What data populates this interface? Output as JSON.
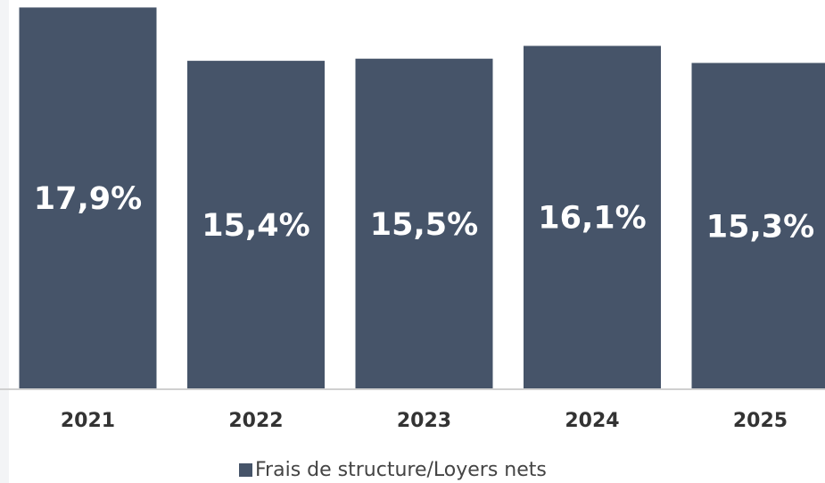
{
  "chart_data": {
    "type": "bar",
    "categories": [
      "2021",
      "2022",
      "2023",
      "2024",
      "2025"
    ],
    "series": [
      {
        "name": "Frais de structure/Loyers nets",
        "color": "#465469",
        "values": [
          17.9,
          15.4,
          15.5,
          16.1,
          15.3
        ],
        "value_labels": [
          "17,9%",
          "15,4%",
          "15,5%",
          "16,1%",
          "15,3%"
        ]
      }
    ],
    "ylim": [
      0,
      18
    ],
    "legend": "bottom"
  }
}
